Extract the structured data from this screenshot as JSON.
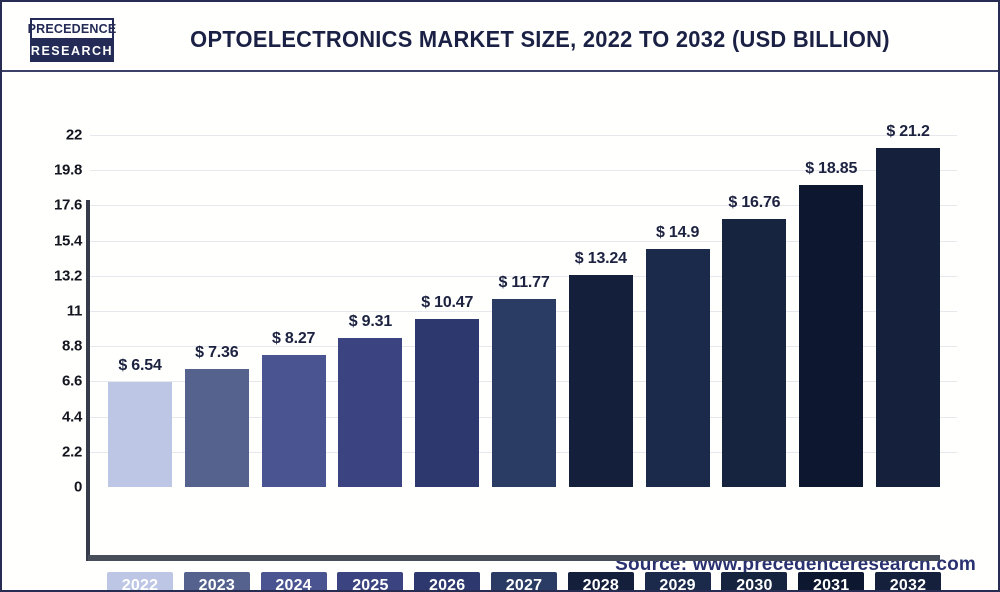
{
  "header": {
    "logo_line1": "PRECEDENCE",
    "logo_line2": "RESEARCH",
    "title": "OPTOELECTRONICS MARKET SIZE, 2022 TO 2032 (USD BILLION)"
  },
  "source": {
    "label": "Source: www.precedenceresearch.com"
  },
  "colors": {
    "title_text": "#1b2144",
    "axis_spine": "#363c4a",
    "baseline": "#474d59",
    "gridline": "#e7e8ee",
    "value_label_text": "#1c2240",
    "year_label_text": "#ffffff",
    "source_text": "#2a3170",
    "border": "#262c52"
  },
  "chart_data": {
    "type": "bar",
    "title": "Optoelectronics Market Size, 2022 to 2032 (USD Billion)",
    "xlabel": "",
    "ylabel": "",
    "categories": [
      "2022",
      "2023",
      "2024",
      "2025",
      "2026",
      "2027",
      "2028",
      "2029",
      "2030",
      "2031",
      "2032"
    ],
    "values": [
      6.54,
      7.36,
      8.27,
      9.31,
      10.47,
      11.77,
      13.24,
      14.9,
      16.76,
      18.85,
      21.2
    ],
    "value_labels": [
      "$ 6.54",
      "$ 7.36",
      "$ 8.27",
      "$ 9.31",
      "$ 10.47",
      "$ 11.77",
      "$ 13.24",
      "$ 14.9",
      "$ 16.76",
      "$ 18.85",
      "$ 21.2"
    ],
    "bar_colors": [
      "#bdc6e4",
      "#55628e",
      "#4a5490",
      "#3b4380",
      "#2c386e",
      "#2a3c63",
      "#141f3b",
      "#1b2a4b",
      "#172440",
      "#0d1730",
      "#15203c"
    ],
    "yticks": [
      0,
      2.2,
      4.4,
      6.6,
      8.8,
      11,
      13.2,
      15.4,
      17.6,
      19.8,
      22
    ],
    "ylim": [
      0,
      22
    ],
    "grid": true,
    "legend": "none",
    "unit": "USD Billion"
  }
}
